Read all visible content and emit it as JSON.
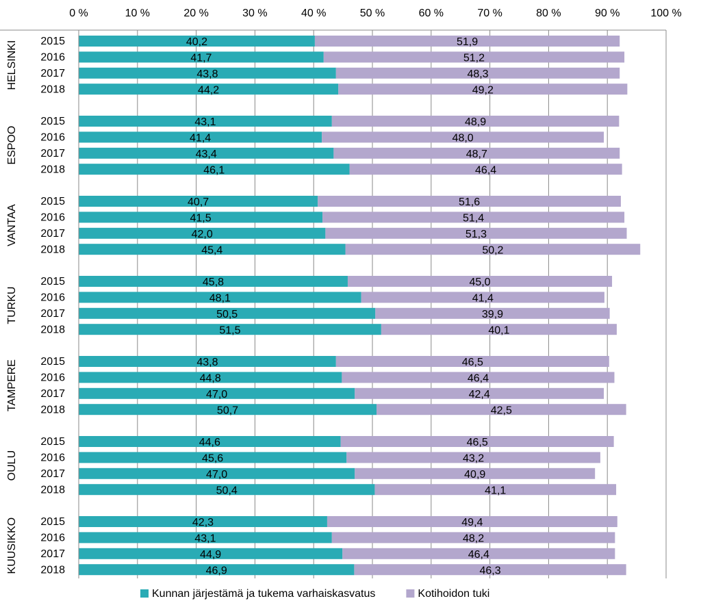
{
  "chart_data": {
    "type": "stacked-bar-horizontal",
    "groups": [
      {
        "name": "HELSINKI",
        "categories": [
          "2015",
          "2016",
          "2017",
          "2018"
        ]
      },
      {
        "name": "ESPOO",
        "categories": [
          "2015",
          "2016",
          "2017",
          "2018"
        ]
      },
      {
        "name": "VANTAA",
        "categories": [
          "2015",
          "2016",
          "2017",
          "2018"
        ]
      },
      {
        "name": "TURKU",
        "categories": [
          "2015",
          "2016",
          "2017",
          "2018"
        ]
      },
      {
        "name": "TAMPERE",
        "categories": [
          "2015",
          "2016",
          "2017",
          "2018"
        ]
      },
      {
        "name": "OULU",
        "categories": [
          "2015",
          "2016",
          "2017",
          "2018"
        ]
      },
      {
        "name": "KUUSIKKO",
        "categories": [
          "2015",
          "2016",
          "2017",
          "2018"
        ]
      }
    ],
    "series": [
      {
        "name": "Kunnan järjestämä ja tukema varhaiskasvatus",
        "color": "#2aabb5",
        "values": [
          40.2,
          41.7,
          43.8,
          44.2,
          43.1,
          41.4,
          43.4,
          46.1,
          40.7,
          41.5,
          42.0,
          45.4,
          45.8,
          48.1,
          50.5,
          51.5,
          43.8,
          44.8,
          47.0,
          50.7,
          44.6,
          45.6,
          47.0,
          50.4,
          42.3,
          43.1,
          44.9,
          46.9
        ],
        "value_labels": [
          "40,2",
          "41,7",
          "43,8",
          "44,2",
          "43,1",
          "41,4",
          "43,4",
          "46,1",
          "40,7",
          "41,5",
          "42,0",
          "45,4",
          "45,8",
          "48,1",
          "50,5",
          "51,5",
          "43,8",
          "44,8",
          "47,0",
          "50,7",
          "44,6",
          "45,6",
          "47,0",
          "50,4",
          "42,3",
          "43,1",
          "44,9",
          "46,9"
        ]
      },
      {
        "name": "Kotihoidon tuki",
        "color": "#b3a7cd",
        "values": [
          51.9,
          51.2,
          48.3,
          49.2,
          48.9,
          48.0,
          48.7,
          46.4,
          51.6,
          51.4,
          51.3,
          50.2,
          45.0,
          41.4,
          39.9,
          40.1,
          46.5,
          46.4,
          42.4,
          42.5,
          46.5,
          43.2,
          40.9,
          41.1,
          49.4,
          48.2,
          46.4,
          46.3
        ],
        "value_labels": [
          "51,9",
          "51,2",
          "48,3",
          "49,2",
          "48,9",
          "48,0",
          "48,7",
          "46,4",
          "51,6",
          "51,4",
          "51,3",
          "50,2",
          "45,0",
          "41,4",
          "39,9",
          "40,1",
          "46,5",
          "46,4",
          "42,4",
          "42,5",
          "46,5",
          "43,2",
          "40,9",
          "41,1",
          "49,4",
          "48,2",
          "46,4",
          "46,3"
        ]
      }
    ],
    "xlim": [
      0,
      100
    ],
    "xticks": [
      {
        "value": 0,
        "label": "0 %"
      },
      {
        "value": 10,
        "label": "10 %"
      },
      {
        "value": 20,
        "label": "20 %"
      },
      {
        "value": 30,
        "label": "30 %"
      },
      {
        "value": 40,
        "label": "40 %"
      },
      {
        "value": 50,
        "label": "50 %"
      },
      {
        "value": 60,
        "label": "60 %"
      },
      {
        "value": 70,
        "label": "70 %"
      },
      {
        "value": 80,
        "label": "80 %"
      },
      {
        "value": 90,
        "label": "90 %"
      },
      {
        "value": 100,
        "label": "100 %"
      }
    ],
    "grid": true
  }
}
